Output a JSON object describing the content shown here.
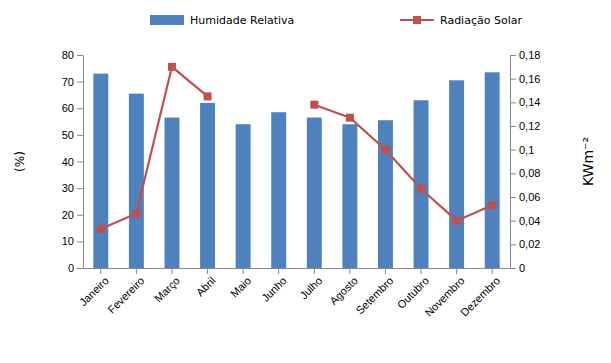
{
  "chart_data": {
    "type": "bar",
    "categories": [
      "Janeiro",
      "Fevereiro",
      "Março",
      "Abril",
      "Maio",
      "Junho",
      "Julho",
      "Agosto",
      "Setembro",
      "Outubro",
      "Novembro",
      "Dezembro"
    ],
    "series": [
      {
        "name": "Humidade Relativa",
        "type": "bar",
        "color": "#4f81bd",
        "values": [
          73,
          65.5,
          56.5,
          62,
          54,
          58.5,
          56.5,
          54,
          55.5,
          63,
          70.5,
          73.5
        ]
      },
      {
        "name": "Radiação Solar",
        "type": "line",
        "axis": "y2",
        "color": "#c0504d",
        "marker": "square",
        "values": [
          0.033,
          0.046,
          0.17,
          0.145,
          null,
          null,
          0.138,
          0.127,
          0.1,
          0.067,
          0.04,
          0.053
        ]
      }
    ],
    "y_label": "(%)",
    "y2_label": "KWm⁻²",
    "ylim": [
      0,
      80
    ],
    "yticks": [
      0,
      10,
      20,
      30,
      40,
      50,
      60,
      70,
      80
    ],
    "y2lim": [
      0,
      0.18
    ],
    "y2ticks": [
      0,
      {
        "value": 0.02,
        "label": "0,02"
      },
      {
        "value": 0.04,
        "label": "0,04"
      },
      {
        "value": 0.06,
        "label": "0,06"
      },
      {
        "value": 0.08,
        "label": "0,08"
      },
      {
        "value": 0.1,
        "label": "0,1"
      },
      {
        "value": 0.12,
        "label": "0,12"
      },
      {
        "value": 0.14,
        "label": "0,14"
      },
      {
        "value": 0.16,
        "label": "0,16"
      },
      {
        "value": 0.18,
        "label": "0,18"
      }
    ],
    "legend": "top",
    "grid": false
  }
}
